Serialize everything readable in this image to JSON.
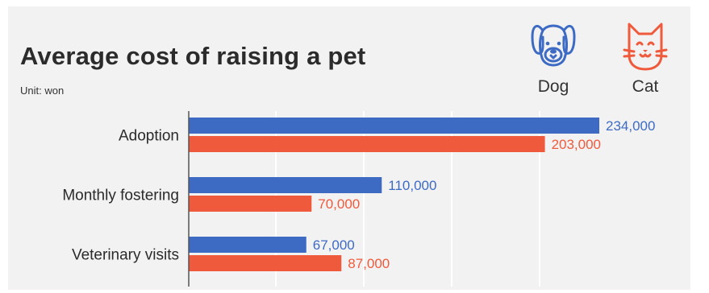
{
  "chart_data": {
    "type": "bar",
    "orientation": "horizontal",
    "title": "Average cost of raising a pet",
    "subtitle": "Unit: won",
    "categories": [
      "Adoption",
      "Monthly fostering",
      "Veterinary visits"
    ],
    "series": [
      {
        "name": "Dog",
        "color": "#3d6bc4",
        "values": [
          234000,
          110000,
          67000
        ],
        "labels": [
          "234,000",
          "110,000",
          "67,000"
        ]
      },
      {
        "name": "Cat",
        "color": "#f05a3c",
        "values": [
          203000,
          70000,
          87000
        ],
        "labels": [
          "203,000",
          "70,000",
          "87,000"
        ]
      }
    ],
    "xlim": [
      0,
      234000
    ],
    "grid": true,
    "legend": "top-right",
    "legend_icons": [
      "dog-icon",
      "cat-icon"
    ]
  }
}
